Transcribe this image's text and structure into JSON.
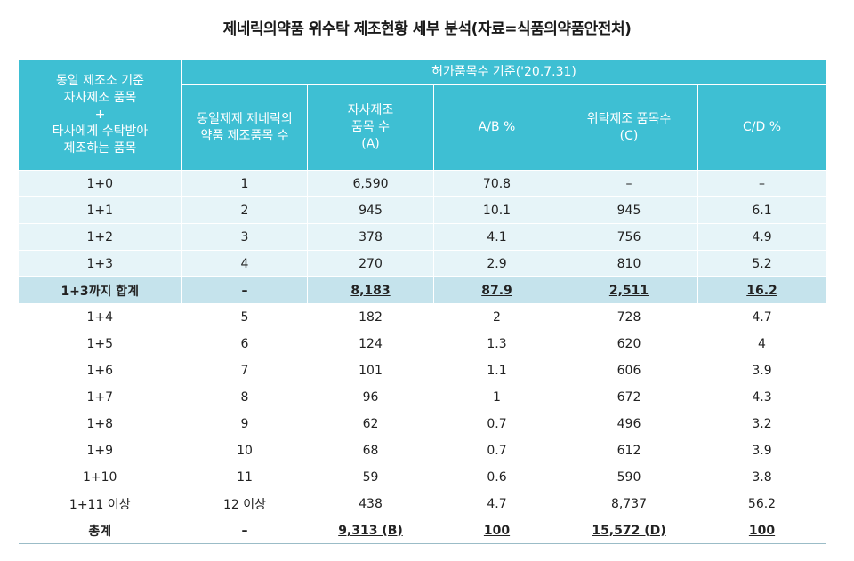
{
  "title": "제네릭의약품 위수탁 제조현황 세부 분석(자료=식품의약품안전처)",
  "header": {
    "col1": [
      "동일 제조소 기준",
      "자사제조 품목",
      "+",
      "타사에게 수탁받아",
      "제조하는 품목"
    ],
    "group": "허가품목수 기준('20.7.31)",
    "col2": [
      "동일제제 제네릭의",
      "약품 제조품목 수"
    ],
    "col3": [
      "자사제조",
      "품목 수",
      "(A)"
    ],
    "col4": "A/B %",
    "col5": [
      "위탁제조 품목수",
      "(C)"
    ],
    "col6": "C/D %"
  },
  "rows": [
    {
      "label": "1+0",
      "count": "1",
      "a": "6,590",
      "ab": "70.8",
      "c": "–",
      "cd": "–"
    },
    {
      "label": "1+1",
      "count": "2",
      "a": "945",
      "ab": "10.1",
      "c": "945",
      "cd": "6.1"
    },
    {
      "label": "1+2",
      "count": "3",
      "a": "378",
      "ab": "4.1",
      "c": "756",
      "cd": "4.9"
    },
    {
      "label": "1+3",
      "count": "4",
      "a": "270",
      "ab": "2.9",
      "c": "810",
      "cd": "5.2"
    },
    {
      "label": "1+3까지 합계",
      "count": "–",
      "a": "8,183",
      "ab": "87.9",
      "c": "2,511",
      "cd": "16.2"
    },
    {
      "label": "1+4",
      "count": "5",
      "a": "182",
      "ab": "2",
      "c": "728",
      "cd": "4.7"
    },
    {
      "label": "1+5",
      "count": "6",
      "a": "124",
      "ab": "1.3",
      "c": "620",
      "cd": "4"
    },
    {
      "label": "1+6",
      "count": "7",
      "a": "101",
      "ab": "1.1",
      "c": "606",
      "cd": "3.9"
    },
    {
      "label": "1+7",
      "count": "8",
      "a": "96",
      "ab": "1",
      "c": "672",
      "cd": "4.3"
    },
    {
      "label": "1+8",
      "count": "9",
      "a": "62",
      "ab": "0.7",
      "c": "496",
      "cd": "3.2"
    },
    {
      "label": "1+9",
      "count": "10",
      "a": "68",
      "ab": "0.7",
      "c": "612",
      "cd": "3.9"
    },
    {
      "label": "1+10",
      "count": "11",
      "a": "59",
      "ab": "0.6",
      "c": "590",
      "cd": "3.8"
    },
    {
      "label": "1+11 이상",
      "count": "12 이상",
      "a": "438",
      "ab": "4.7",
      "c": "8,737",
      "cd": "56.2"
    },
    {
      "label": "총계",
      "count": "–",
      "a": "9,313 (B)",
      "ab": "100",
      "c": "15,572 (D)",
      "cd": "100"
    }
  ]
}
